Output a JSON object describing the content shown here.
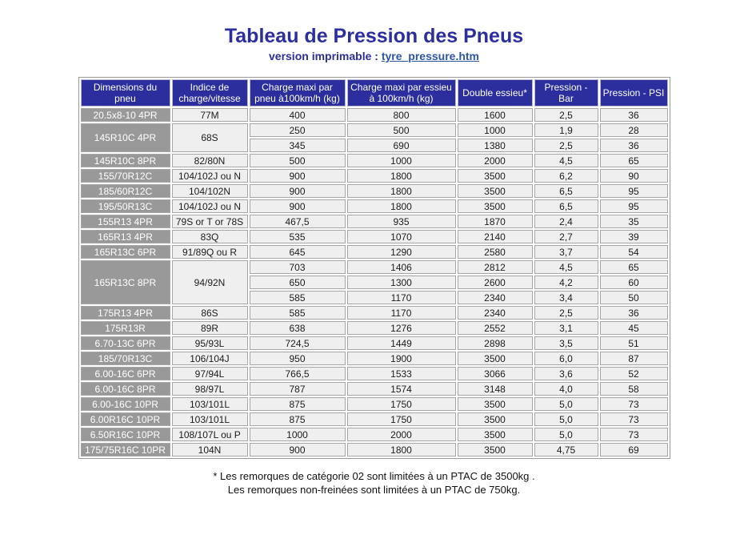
{
  "colors": {
    "accent_navy": "#2b2e9c",
    "link_blue": "#2d55a8",
    "dimension_gray": "#999999",
    "cell_bg": "#efefef"
  },
  "header": {
    "title": "Tableau de Pression des Pneus",
    "subtitle_label": "version imprimable :",
    "subtitle_link": "tyre_pressure.htm"
  },
  "table": {
    "columns": [
      "Dimensions du pneu",
      "Indice de charge/vitesse",
      "Charge maxi par pneu à100km/h (kg)",
      "Charge maxi par essieu à 100km/h (kg)",
      "Double essieu*",
      "Pression - Bar",
      "Pression - PSI"
    ],
    "rows": [
      {
        "dimensions": "20.5x8-10 4PR",
        "indice": "77M",
        "entries": [
          [
            "400",
            "800",
            "1600",
            "2,5",
            "36"
          ]
        ]
      },
      {
        "dimensions": "145R10C 4PR",
        "indice": "68S",
        "entries": [
          [
            "250",
            "500",
            "1000",
            "1,9",
            "28"
          ],
          [
            "345",
            "690",
            "1380",
            "2,5",
            "36"
          ]
        ]
      },
      {
        "dimensions": "145R10C 8PR",
        "indice": "82/80N",
        "entries": [
          [
            "500",
            "1000",
            "2000",
            "4,5",
            "65"
          ]
        ]
      },
      {
        "dimensions": "155/70R12C",
        "indice": "104/102J ou N",
        "entries": [
          [
            "900",
            "1800",
            "3500",
            "6,2",
            "90"
          ]
        ]
      },
      {
        "dimensions": "185/60R12C",
        "indice": "104/102N",
        "entries": [
          [
            "900",
            "1800",
            "3500",
            "6,5",
            "95"
          ]
        ]
      },
      {
        "dimensions": "195/50R13C",
        "indice": "104/102J ou N",
        "entries": [
          [
            "900",
            "1800",
            "3500",
            "6,5",
            "95"
          ]
        ]
      },
      {
        "dimensions": "155R13 4PR",
        "indice": "79S or T or 78S",
        "entries": [
          [
            "467,5",
            "935",
            "1870",
            "2,4",
            "35"
          ]
        ]
      },
      {
        "dimensions": "165R13 4PR",
        "indice": "83Q",
        "entries": [
          [
            "535",
            "1070",
            "2140",
            "2,7",
            "39"
          ]
        ]
      },
      {
        "dimensions": "165R13C 6PR",
        "indice": "91/89Q ou R",
        "entries": [
          [
            "645",
            "1290",
            "2580",
            "3,7",
            "54"
          ]
        ]
      },
      {
        "dimensions": "165R13C 8PR",
        "indice": "94/92N",
        "entries": [
          [
            "703",
            "1406",
            "2812",
            "4,5",
            "65"
          ],
          [
            "650",
            "1300",
            "2600",
            "4,2",
            "60"
          ],
          [
            "585",
            "1170",
            "2340",
            "3,4",
            "50"
          ]
        ]
      },
      {
        "dimensions": "175R13 4PR",
        "indice": "86S",
        "entries": [
          [
            "585",
            "1170",
            "2340",
            "2,5",
            "36"
          ]
        ]
      },
      {
        "dimensions": "175R13R",
        "indice": "89R",
        "entries": [
          [
            "638",
            "1276",
            "2552",
            "3,1",
            "45"
          ]
        ]
      },
      {
        "dimensions": "6.70-13C 6PR",
        "indice": "95/93L",
        "entries": [
          [
            "724,5",
            "1449",
            "2898",
            "3,5",
            "51"
          ]
        ]
      },
      {
        "dimensions": "185/70R13C",
        "indice": "106/104J",
        "entries": [
          [
            "950",
            "1900",
            "3500",
            "6,0",
            "87"
          ]
        ]
      },
      {
        "dimensions": "6.00-16C 6PR",
        "indice": "97/94L",
        "entries": [
          [
            "766,5",
            "1533",
            "3066",
            "3,6",
            "52"
          ]
        ]
      },
      {
        "dimensions": "6.00-16C 8PR",
        "indice": "98/97L",
        "entries": [
          [
            "787",
            "1574",
            "3148",
            "4,0",
            "58"
          ]
        ]
      },
      {
        "dimensions": "6.00-16C 10PR",
        "indice": "103/101L",
        "entries": [
          [
            "875",
            "1750",
            "3500",
            "5,0",
            "73"
          ]
        ]
      },
      {
        "dimensions": "6.00R16C 10PR",
        "indice": "103/101L",
        "entries": [
          [
            "875",
            "1750",
            "3500",
            "5,0",
            "73"
          ]
        ]
      },
      {
        "dimensions": "6.50R16C 10PR",
        "indice": "108/107L ou P",
        "entries": [
          [
            "1000",
            "2000",
            "3500",
            "5,0",
            "73"
          ]
        ]
      },
      {
        "dimensions": "175/75R16C 10PR",
        "indice": "104N",
        "entries": [
          [
            "900",
            "1800",
            "3500",
            "4,75",
            "69"
          ]
        ]
      }
    ]
  },
  "footnote": {
    "line1": "* Les remorques de catégorie 02 sont limitées à un PTAC de 3500kg .",
    "line2": "Les remorques non-freinées sont limitées à un PTAC de 750kg."
  }
}
